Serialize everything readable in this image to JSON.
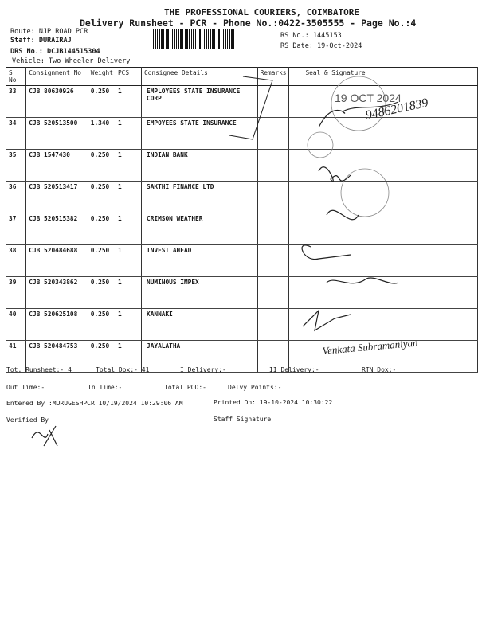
{
  "header": {
    "company": "THE PROFESSIONAL COURIERS, COIMBATORE",
    "title": "Delivery Runsheet - PCR - Phone No.:0422-3505555 - Page No.:4",
    "route": "Route: NJP ROAD  PCR",
    "staff": "Staff: DURAIRAJ",
    "drs_no": "DRS No.: DCJB144515304",
    "vehicle": "Vehicle: Two Wheeler Delivery",
    "rs_no": "RS No.: 1445153",
    "rs_date": "RS Date: 19-Oct-2024"
  },
  "table": {
    "columns": [
      "S No",
      "Consignment No",
      "Weight",
      "PCS",
      "Consignee Details",
      "Remarks",
      "Seal & Signature"
    ],
    "rows": [
      {
        "sno": "33",
        "cons": "CJB 80630926",
        "weight": "0.250",
        "pcs": "1",
        "consignee": "EMPLOYEES STATE INSURANCE CORP"
      },
      {
        "sno": "34",
        "cons": "CJB 520513500",
        "weight": "1.340",
        "pcs": "1",
        "consignee": "EMPOYEES STATE INSURANCE"
      },
      {
        "sno": "35",
        "cons": "CJB 1547430",
        "weight": "0.250",
        "pcs": "1",
        "consignee": "INDIAN BANK"
      },
      {
        "sno": "36",
        "cons": "CJB 520513417",
        "weight": "0.250",
        "pcs": "1",
        "consignee": "SAKTHI FINANCE LTD"
      },
      {
        "sno": "37",
        "cons": "CJB 520515382",
        "weight": "0.250",
        "pcs": "1",
        "consignee": "CRIMSON WEATHER"
      },
      {
        "sno": "38",
        "cons": "CJB 520484688",
        "weight": "0.250",
        "pcs": "1",
        "consignee": "INVEST AHEAD"
      },
      {
        "sno": "39",
        "cons": "CJB 520343862",
        "weight": "0.250",
        "pcs": "1",
        "consignee": "NUMINOUS IMPEX"
      },
      {
        "sno": "40",
        "cons": "CJB 520625108",
        "weight": "0.250",
        "pcs": "1",
        "consignee": "KANNAKI"
      },
      {
        "sno": "41",
        "cons": "CJB 520484753",
        "weight": "0.250",
        "pcs": "1",
        "consignee": "JAYALATHA"
      }
    ]
  },
  "footer": {
    "tot_runsheet": "Tot. Runsheet:- 4",
    "total_dox": "Total Dox:-   41",
    "i_delivery": "I Delivery:-",
    "ii_delivery": "II Delivery:-",
    "rtn_dox": "RTN Dox:-",
    "out_time": "Out Time:-",
    "in_time": "In Time:-",
    "total_pod": "Total POD:-",
    "delvy_points": "Delvy Points:-",
    "entered_by": "Entered By :MURUGESHPCR 10/19/2024 10:29:06 AM",
    "printed_on": "Printed On: 19-10-2024 10:30:22",
    "verified_by": "Verified By",
    "staff_signature": "Staff Signature"
  },
  "stamps": {
    "date_stamp": "19 OCT 2024",
    "handwritten_phone": "9486201839",
    "signature_41": "Venkata Subramaniyan"
  }
}
